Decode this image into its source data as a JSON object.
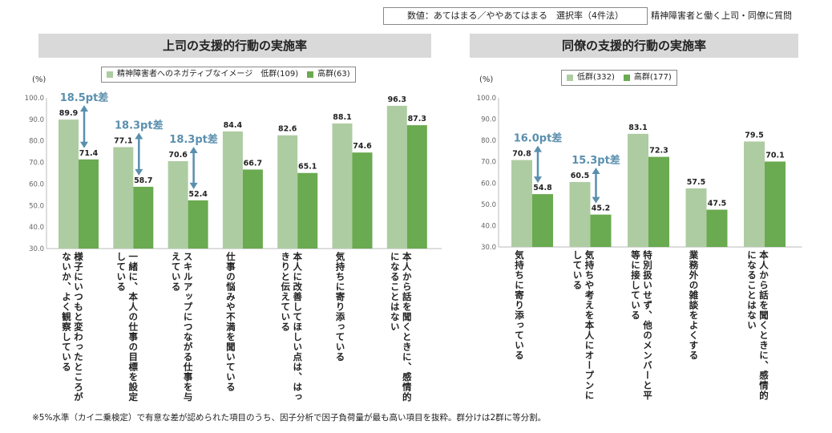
{
  "header": {
    "scale_note": "数値：あてはまる／ややあてはまる　選択率（4件法）",
    "subject_note": "精神障害者と働く上司・同僚に質問"
  },
  "footnote": "※5%水準（カイ二乗検定）で有意な差が認められた項目のうち、因子分析で因子負荷量が最も高い項目を抜粋。群分けは2群に等分割。",
  "colors": {
    "low": "#aeccA2",
    "high": "#6aaa50",
    "arrow": "#5a8fae",
    "diff_text": "#5a8fae"
  },
  "chart_data": [
    {
      "type": "bar",
      "title": "上司の支援的行動の実施率",
      "ylabel": "(%)",
      "ylim": [
        30,
        100
      ],
      "yticks": [
        "100.0",
        "90.0",
        "80.0",
        "70.0",
        "60.0",
        "50.0",
        "40.0",
        "30.0"
      ],
      "legend": {
        "low": "精神障害者へのネガティブなイメージ　低群(109)",
        "high": "高群(63)"
      },
      "categories": [
        "様子にいつもと変わったところがないか、よく観察している",
        "一緒に、本人の仕事の目標を設定している",
        "スキルアップにつながる仕事を与えている",
        "仕事の悩みや不満を聞いている",
        "本人に改善してほしい点は、はっきりと伝えている",
        "気持ちに寄り添っている",
        "本人から話を聞くときに、感情的になることはない"
      ],
      "series": [
        {
          "name": "低群",
          "values": [
            89.9,
            77.1,
            70.6,
            84.4,
            82.6,
            88.1,
            96.3
          ]
        },
        {
          "name": "高群",
          "values": [
            71.4,
            58.7,
            52.4,
            66.7,
            65.1,
            74.6,
            87.3
          ]
        }
      ],
      "value_labels": {
        "low": [
          "89.9",
          "77.1",
          "70.6",
          "84.4",
          "82.6",
          "88.1",
          "96.3"
        ],
        "high": [
          "71.4",
          "58.7",
          "52.4",
          "66.7",
          "65.1",
          "74.6",
          "87.3"
        ]
      },
      "annotations": [
        {
          "category_index": 0,
          "text": "18.5pt差"
        },
        {
          "category_index": 1,
          "text": "18.3pt差"
        },
        {
          "category_index": 2,
          "text": "18.3pt差"
        }
      ]
    },
    {
      "type": "bar",
      "title": "同僚の支援的行動の実施率",
      "ylabel": "(%)",
      "ylim": [
        30,
        100
      ],
      "yticks": [
        "100.0",
        "90.0",
        "80.0",
        "70.0",
        "60.0",
        "50.0",
        "40.0",
        "30.0"
      ],
      "legend": {
        "low": "低群(332)",
        "high": "高群(177)"
      },
      "categories": [
        "気持ちに寄り添っている",
        "気持ちや考えを本人にオープンにしている",
        "特別扱いせず、他のメンバーと平等に接している",
        "業務外の雑談をよくする",
        "本人から話を聞くときに、感情的になることはない"
      ],
      "series": [
        {
          "name": "低群",
          "values": [
            70.8,
            60.5,
            83.1,
            57.5,
            79.5
          ]
        },
        {
          "name": "高群",
          "values": [
            54.8,
            45.2,
            72.3,
            47.5,
            70.1
          ]
        }
      ],
      "value_labels": {
        "low": [
          "70.8",
          "60.5",
          "83.1",
          "57.5",
          "79.5"
        ],
        "high": [
          "54.8",
          "45.2",
          "72.3",
          "47.5",
          "70.1"
        ]
      },
      "annotations": [
        {
          "category_index": 0,
          "text": "16.0pt差"
        },
        {
          "category_index": 1,
          "text": "15.3pt差"
        }
      ]
    }
  ]
}
